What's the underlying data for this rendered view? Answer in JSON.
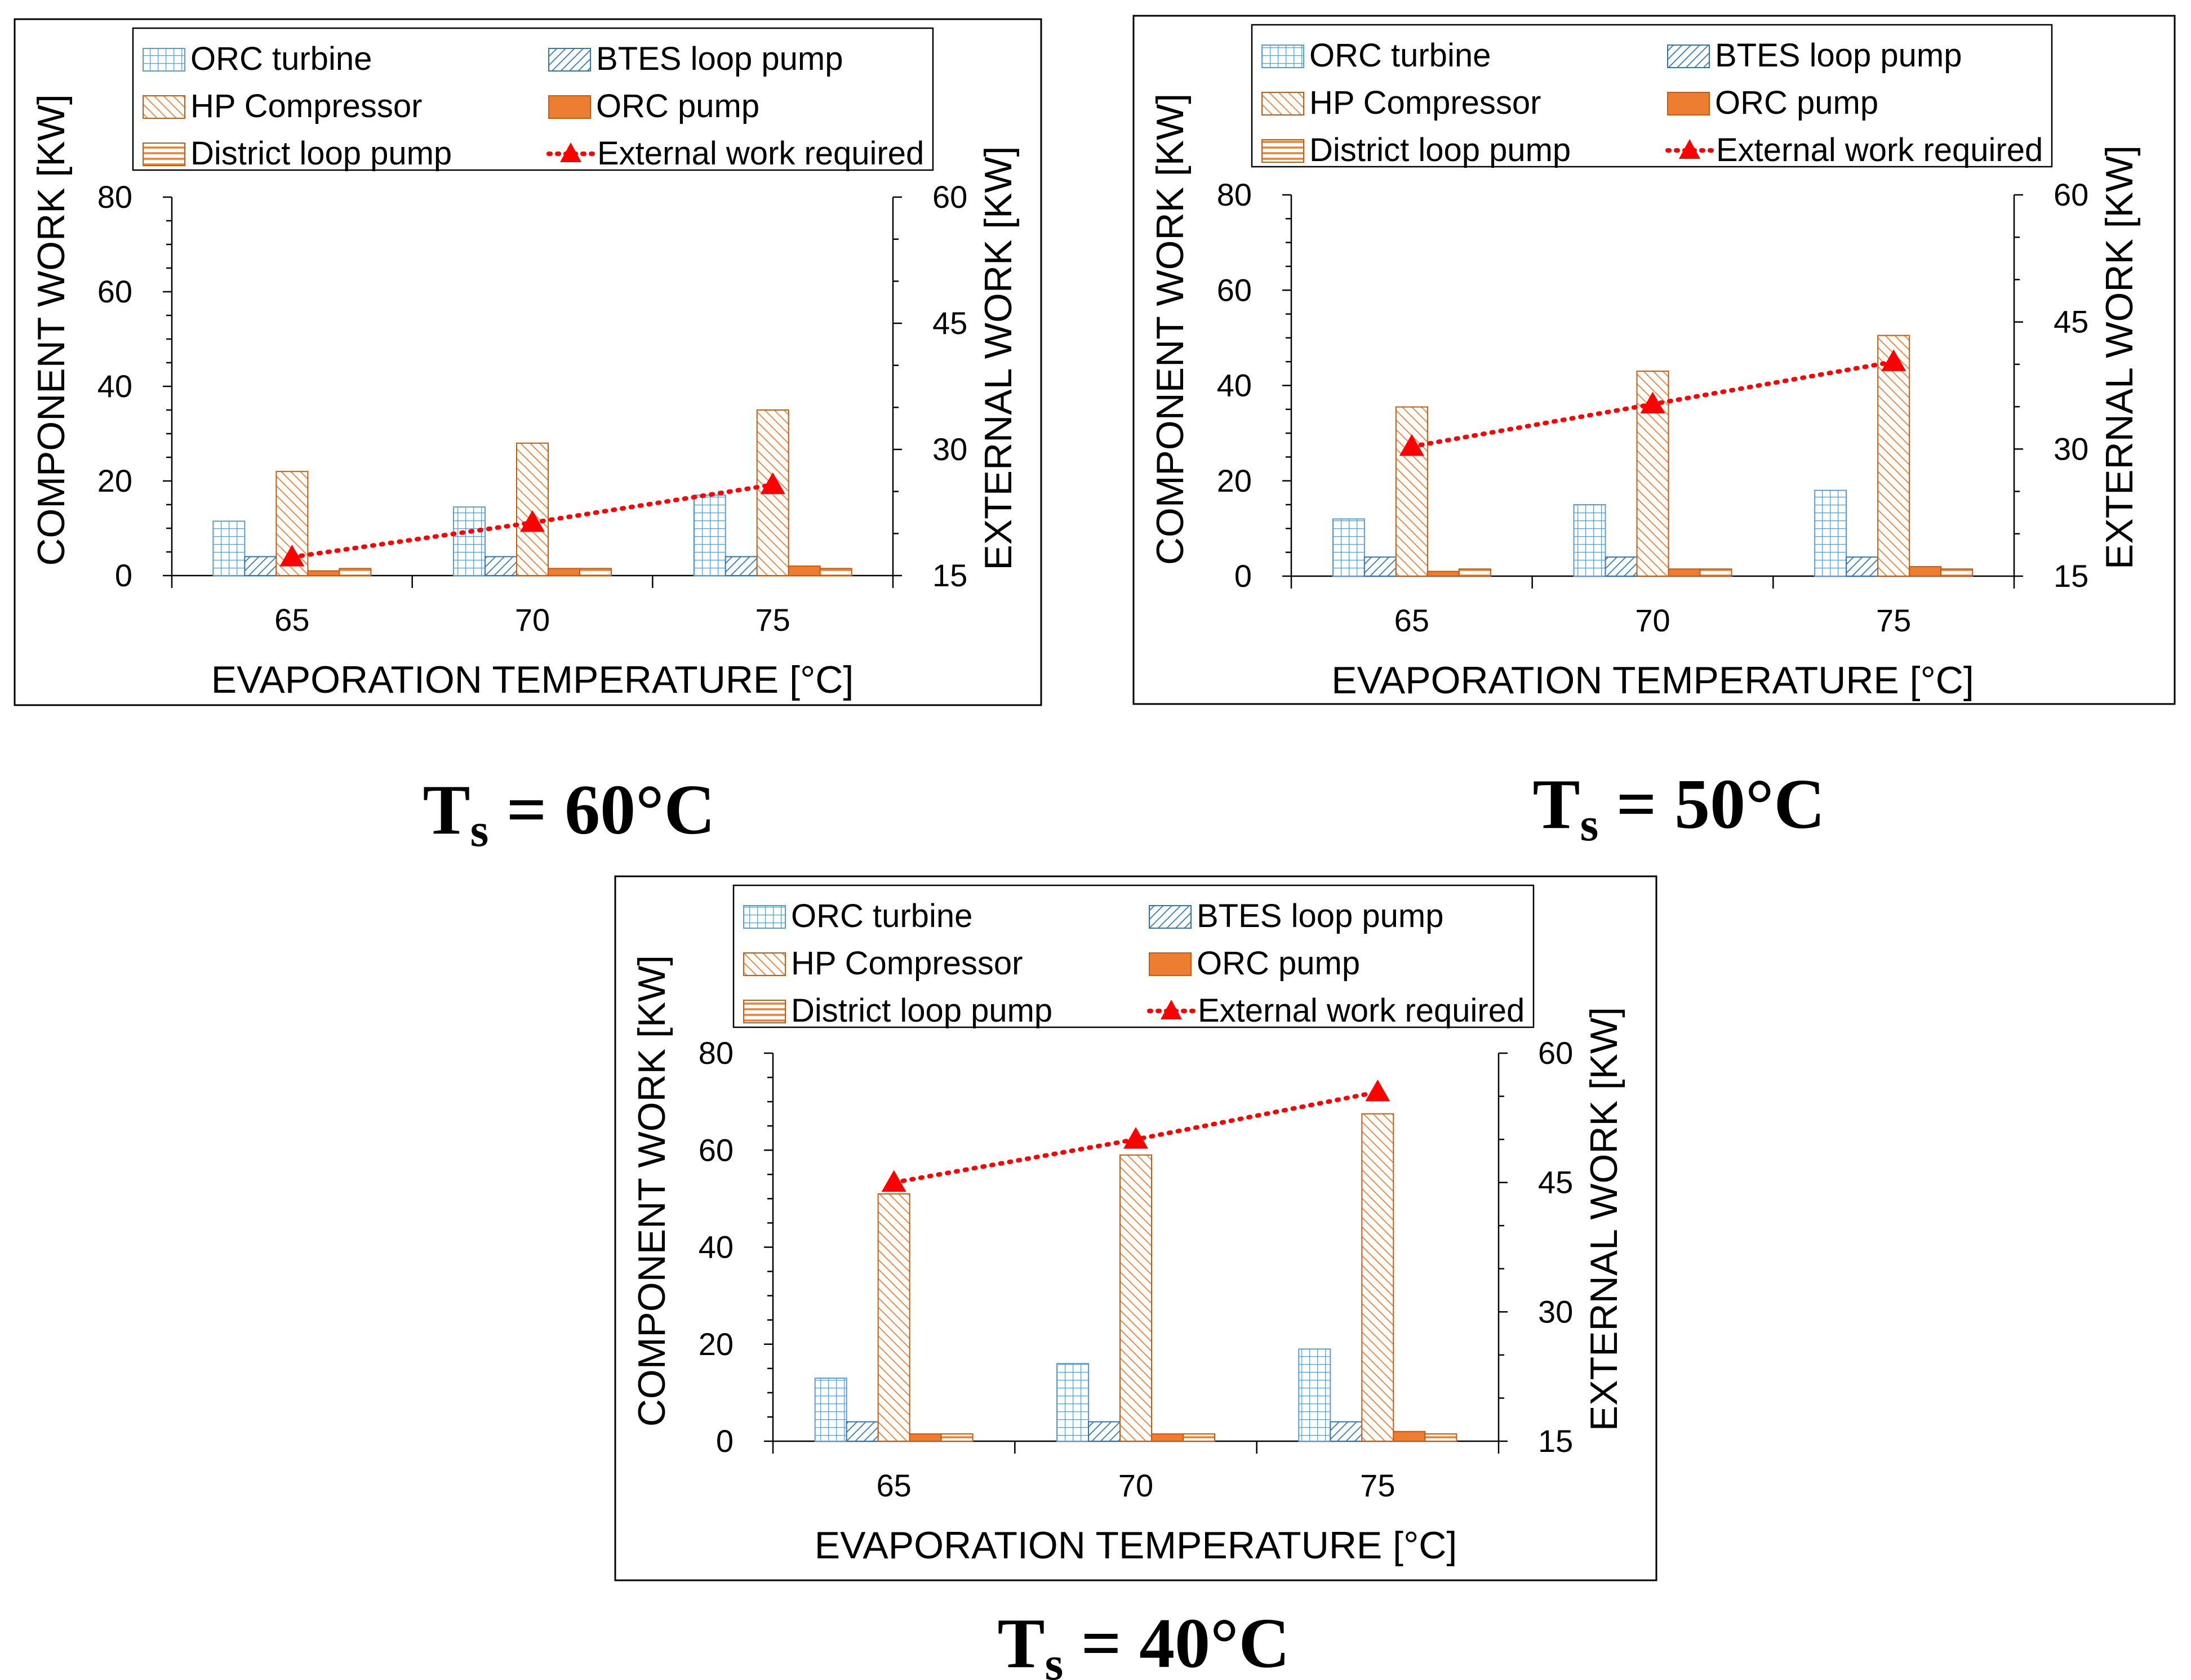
{
  "chart_data": [
    {
      "type": "bar",
      "caption": {
        "main": "T",
        "sub": "s",
        "rest": " = 60°C"
      },
      "categories": [
        "65",
        "70",
        "75"
      ],
      "xlabel": "EVAPORATION TEMPERATURE [°C]",
      "ylabel": "COMPONENT WORK [KW]",
      "y2label": "EXTERNAL WORK [KW]",
      "ylim": [
        0,
        80
      ],
      "yticks": [
        "0",
        "20",
        "40",
        "60",
        "80"
      ],
      "y2lim": [
        15,
        60
      ],
      "y2ticks": [
        "15",
        "30",
        "45",
        "60"
      ],
      "series": [
        {
          "name": "ORC turbine",
          "pattern": "grid",
          "values": [
            11.5,
            14.5,
            17.0
          ]
        },
        {
          "name": "BTES loop pump",
          "pattern": "bdiag",
          "values": [
            4.0,
            4.0,
            4.0
          ]
        },
        {
          "name": "HP Compressor",
          "pattern": "fdiag",
          "values": [
            22.0,
            28.0,
            35.0
          ]
        },
        {
          "name": "ORC pump",
          "pattern": "solid",
          "values": [
            1.0,
            1.5,
            2.0
          ]
        },
        {
          "name": "District loop pump",
          "pattern": "horiz",
          "values": [
            1.5,
            1.5,
            1.5
          ]
        }
      ],
      "line": {
        "name": "External work required",
        "values": [
          17.2,
          21.3,
          25.8
        ],
        "color": "#ff0000"
      }
    },
    {
      "type": "bar",
      "caption": {
        "main": "T",
        "sub": "s",
        "rest": " = 50°C"
      },
      "categories": [
        "65",
        "70",
        "75"
      ],
      "xlabel": "EVAPORATION TEMPERATURE [°C]",
      "ylabel": "COMPONENT WORK [KW]",
      "y2label": "EXTERNAL WORK [KW]",
      "ylim": [
        0,
        80
      ],
      "yticks": [
        "0",
        "20",
        "40",
        "60",
        "80"
      ],
      "y2lim": [
        15,
        60
      ],
      "y2ticks": [
        "15",
        "30",
        "45",
        "60"
      ],
      "series": [
        {
          "name": "ORC turbine",
          "pattern": "grid",
          "values": [
            12.0,
            15.0,
            18.0
          ]
        },
        {
          "name": "BTES loop pump",
          "pattern": "bdiag",
          "values": [
            4.0,
            4.0,
            4.0
          ]
        },
        {
          "name": "HP Compressor",
          "pattern": "fdiag",
          "values": [
            35.5,
            43.0,
            50.5
          ]
        },
        {
          "name": "ORC pump",
          "pattern": "solid",
          "values": [
            1.0,
            1.5,
            2.0
          ]
        },
        {
          "name": "District loop pump",
          "pattern": "horiz",
          "values": [
            1.5,
            1.5,
            1.5
          ]
        }
      ],
      "line": {
        "name": "External work required",
        "values": [
          30.3,
          35.3,
          40.3
        ],
        "color": "#ff0000"
      }
    },
    {
      "type": "bar",
      "caption": {
        "main": "T",
        "sub": "s",
        "rest": " = 40°C"
      },
      "categories": [
        "65",
        "70",
        "75"
      ],
      "xlabel": "EVAPORATION TEMPERATURE [°C]",
      "ylabel": "COMPONENT WORK [KW]",
      "y2label": "EXTERNAL WORK [KW]",
      "ylim": [
        0,
        80
      ],
      "yticks": [
        "0",
        "20",
        "40",
        "60",
        "80"
      ],
      "y2lim": [
        15,
        60
      ],
      "y2ticks": [
        "15",
        "30",
        "45",
        "60"
      ],
      "series": [
        {
          "name": "ORC turbine",
          "pattern": "grid",
          "values": [
            13.0,
            16.0,
            19.0
          ]
        },
        {
          "name": "BTES loop pump",
          "pattern": "bdiag",
          "values": [
            4.0,
            4.0,
            4.0
          ]
        },
        {
          "name": "HP Compressor",
          "pattern": "fdiag",
          "values": [
            51.0,
            59.0,
            67.5
          ]
        },
        {
          "name": "ORC pump",
          "pattern": "solid",
          "values": [
            1.5,
            1.5,
            2.0
          ]
        },
        {
          "name": "District loop pump",
          "pattern": "horiz",
          "values": [
            1.5,
            1.5,
            1.5
          ]
        }
      ],
      "line": {
        "name": "External work required",
        "values": [
          45.0,
          50.0,
          55.5
        ],
        "color": "#ff0000"
      }
    }
  ]
}
